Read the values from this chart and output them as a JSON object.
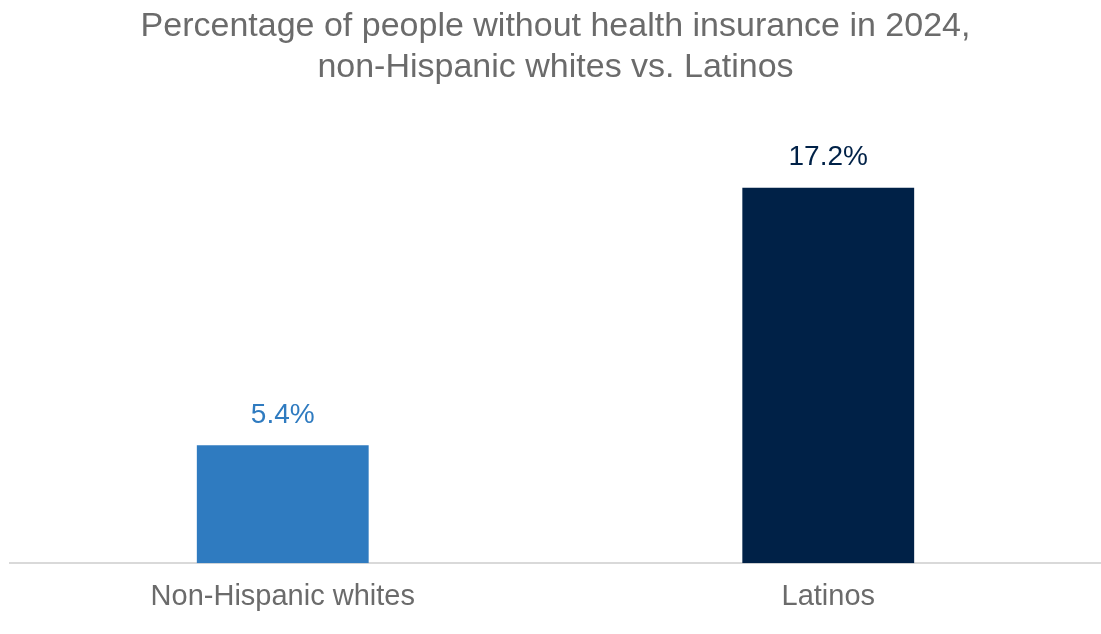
{
  "chart_data": {
    "type": "bar",
    "title": "Percentage of people without health insurance in 2024,\nnon-Hispanic whites vs. Latinos",
    "categories": [
      "Non-Hispanic whites",
      "Latinos"
    ],
    "values": [
      5.4,
      17.2
    ],
    "colors": [
      "#2f7bc0",
      "#002147"
    ],
    "value_labels": [
      "5.4%",
      "17.2%"
    ],
    "grid": false,
    "legend": false
  }
}
